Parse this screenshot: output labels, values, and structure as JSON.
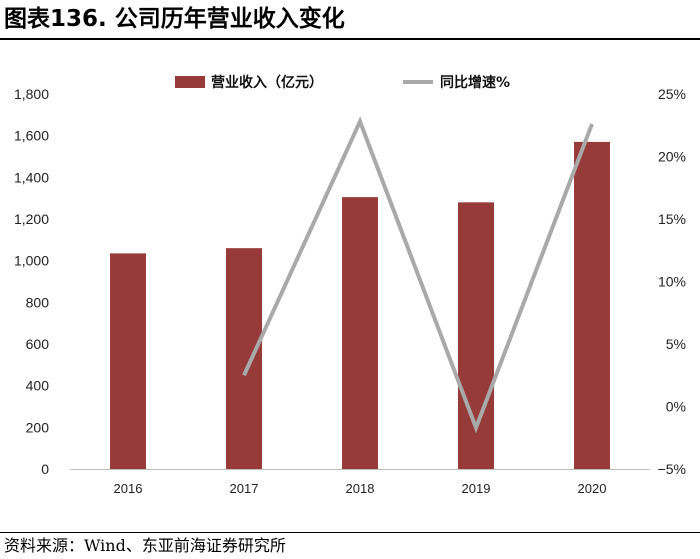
{
  "header": {
    "title": "图表136. 公司历年营业收入变化"
  },
  "footer": {
    "source": "资料来源：Wind、东亚前海证券研究所"
  },
  "colors": {
    "bar": "#963a3a",
    "line": "#a9a9a9"
  },
  "chart_data": {
    "type": "bar",
    "categories": [
      "2016",
      "2017",
      "2018",
      "2019",
      "2020"
    ],
    "series": [
      {
        "name": "营业收入（亿元）",
        "type": "bar",
        "axis": "left",
        "values": [
          1035,
          1060,
          1305,
          1280,
          1570
        ]
      },
      {
        "name": "同比增速%",
        "type": "line",
        "axis": "right",
        "values": [
          null,
          2.5,
          22.8,
          -1.7,
          22.6
        ]
      }
    ],
    "y_left": {
      "ylim": [
        0,
        1800
      ],
      "ticks": [
        0,
        200,
        400,
        600,
        800,
        1000,
        1200,
        1400,
        1600,
        1800
      ],
      "tick_labels": [
        "0",
        "200",
        "400",
        "600",
        "800",
        "1,000",
        "1,200",
        "1,400",
        "1,600",
        "1,800"
      ]
    },
    "y_right": {
      "ylim": [
        -5,
        25
      ],
      "ticks": [
        -5,
        0,
        5,
        10,
        15,
        20,
        25
      ],
      "tick_labels": [
        "−5%",
        "0%",
        "5%",
        "10%",
        "15%",
        "20%",
        "25%"
      ]
    },
    "legend_position": "top-center",
    "grid": false
  }
}
